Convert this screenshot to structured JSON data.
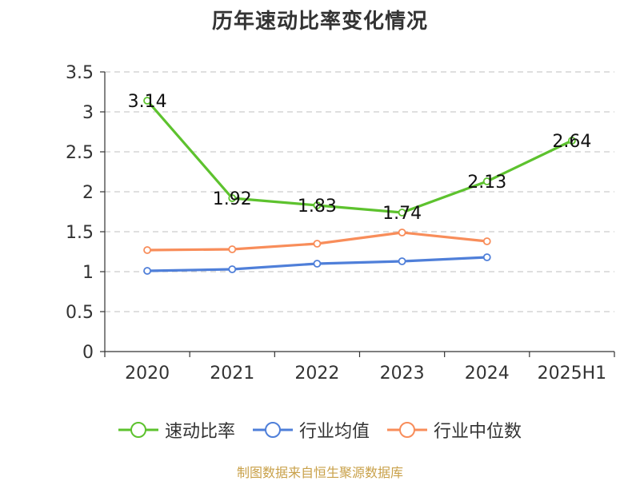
{
  "title": "历年速动比率变化情况",
  "source": "制图数据来自恒生聚源数据库",
  "chart_data": {
    "type": "line",
    "categories": [
      "2020",
      "2021",
      "2022",
      "2023",
      "2024",
      "2025H1"
    ],
    "ylim": [
      0,
      3.5
    ],
    "yticks": [
      "0",
      "0.5",
      "1",
      "1.5",
      "2",
      "2.5",
      "3",
      "3.5"
    ],
    "grid": true,
    "legend_position": "bottom",
    "series": [
      {
        "name": "速动比率",
        "color": "#5dc22e",
        "values": [
          3.14,
          1.92,
          1.83,
          1.74,
          2.13,
          2.64
        ],
        "labels": [
          "3.14",
          "1.92",
          "1.83",
          "1.74",
          "2.13",
          "2.64"
        ]
      },
      {
        "name": "行业均值",
        "color": "#4f7fd9",
        "values": [
          1.01,
          1.03,
          1.1,
          1.13,
          1.18,
          null
        ]
      },
      {
        "name": "行业中位数",
        "color": "#f88d5a",
        "values": [
          1.27,
          1.28,
          1.35,
          1.49,
          1.38,
          null
        ]
      }
    ]
  }
}
